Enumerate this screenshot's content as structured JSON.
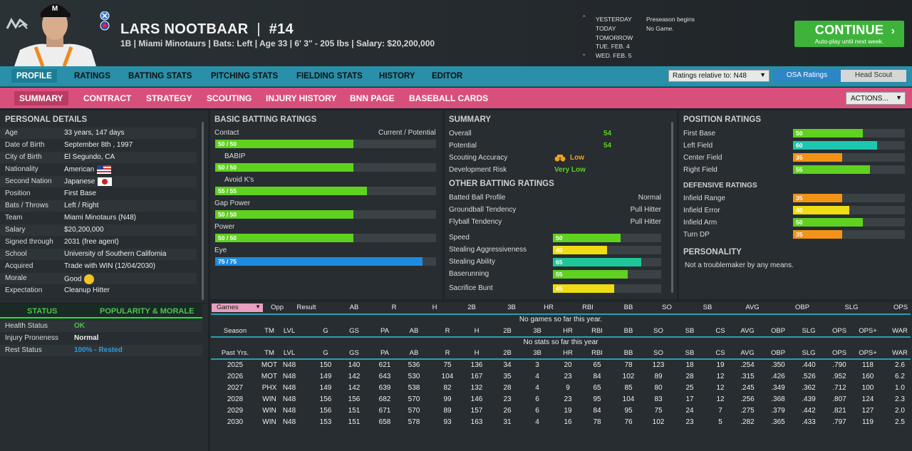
{
  "header": {
    "player_name": "LARS NOOTBAAR",
    "divider": "|",
    "number": "#14",
    "info": "1B | Miami Minotaurs  |  Bats: Left  |  Age 33  |  6' 3\" - 205 lbs  |  Salary: $20,200,000",
    "days": [
      "YESTERDAY",
      "TODAY",
      "TOMORROW",
      "TUE. FEB. 4",
      "WED. FEB. 5"
    ],
    "events": [
      "Preseason begins",
      "No Game."
    ],
    "continue_label": "CONTINUE",
    "continue_sub": "Auto-play until next week."
  },
  "nav1": {
    "items": [
      "PROFILE",
      "RATINGS",
      "BATTING STATS",
      "PITCHING STATS",
      "FIELDING STATS",
      "HISTORY",
      "EDITOR"
    ],
    "ratings_select": "Ratings relative to: N48",
    "toggle_a": "OSA Ratings",
    "toggle_b": "Head Scout"
  },
  "nav2": {
    "items": [
      "SUMMARY",
      "CONTRACT",
      "STRATEGY",
      "SCOUTING",
      "INJURY HISTORY",
      "BNN PAGE",
      "BASEBALL CARDS"
    ],
    "actions": "ACTIONS..."
  },
  "personal": {
    "title": "PERSONAL DETAILS",
    "rows": [
      {
        "k": "Age",
        "v": "33 years, 147 days"
      },
      {
        "k": "Date of Birth",
        "v": "September 8th , 1997"
      },
      {
        "k": "City of Birth",
        "v": "El Segundo, CA"
      },
      {
        "k": "Nationality",
        "v": "American"
      },
      {
        "k": "Second Nation",
        "v": "Japanese"
      },
      {
        "k": "Position",
        "v": "First Base"
      },
      {
        "k": "Bats / Throws",
        "v": "Left / Right"
      },
      {
        "k": "Team",
        "v": "Miami Minotaurs (N48)"
      },
      {
        "k": "Salary",
        "v": "$20,200,000"
      },
      {
        "k": "Signed through",
        "v": "2031 (free agent)"
      },
      {
        "k": "School",
        "v": "University of Southern California"
      },
      {
        "k": "Acquired",
        "v": "Trade with WIN (12/04/2030)"
      },
      {
        "k": "Morale",
        "v": "Good"
      },
      {
        "k": "Expectation",
        "v": "Cleanup Hitter"
      }
    ]
  },
  "status": {
    "tab_a": "STATUS",
    "tab_b": "POPULARITY & MORALE",
    "rows": [
      {
        "k": "Health Status",
        "v": "OK",
        "color": "#4ec44e"
      },
      {
        "k": "Injury Proneness",
        "v": "Normal",
        "color": "#eeeeee"
      },
      {
        "k": "Rest Status",
        "v": "100% - Rested",
        "color": "#2c9be0"
      }
    ]
  },
  "batting": {
    "title": "BASIC BATTING RATINGS",
    "header_right": "Current / Potential",
    "ratings": [
      {
        "label": "Contact",
        "text": "50 / 50",
        "value": 50,
        "color": "#5fd11f"
      },
      {
        "label": "BABIP",
        "text": "50 / 50",
        "value": 50,
        "color": "#5fd11f"
      },
      {
        "label": "Avoid K's",
        "text": "55 / 55",
        "value": 55,
        "color": "#5fd11f"
      },
      {
        "label": "Gap Power",
        "text": "50 / 50",
        "value": 50,
        "color": "#5fd11f"
      },
      {
        "label": "Power",
        "text": "50 / 50",
        "value": 50,
        "color": "#5fd11f"
      },
      {
        "label": "Eye",
        "text": "75 / 75",
        "value": 75,
        "color": "#1e8be0"
      }
    ]
  },
  "summary": {
    "title": "SUMMARY",
    "overall_label": "Overall",
    "overall": "54",
    "potential_label": "Potential",
    "potential": "54",
    "scout_label": "Scouting Accuracy",
    "scout": "Low",
    "dev_label": "Development Risk",
    "dev": "Very Low",
    "other_title": "OTHER BATTING RATINGS",
    "other": [
      {
        "k": "Batted Ball Profile",
        "v": "Normal"
      },
      {
        "k": "Groundball Tendency",
        "v": "Pull Hitter"
      },
      {
        "k": "Flyball Tendency",
        "v": "Pull Hitter"
      }
    ],
    "run_ratings": [
      {
        "label": "Speed",
        "text": "50",
        "value": 50,
        "color": "#5fd11f"
      },
      {
        "label": "Stealing Aggressiveness",
        "text": "40",
        "value": 40,
        "color": "#f0dc14"
      },
      {
        "label": "Stealing Ability",
        "text": "65",
        "value": 65,
        "color": "#1ec79a"
      },
      {
        "label": "Baserunning",
        "text": "55",
        "value": 55,
        "color": "#5fd11f"
      },
      {
        "label": "Sacrifice Bunt",
        "text": "45",
        "value": 45,
        "color": "#f0dc14"
      }
    ]
  },
  "position": {
    "title": "POSITION RATINGS",
    "ratings": [
      {
        "label": "First Base",
        "text": "50",
        "value": 50,
        "color": "#5fd11f"
      },
      {
        "label": "Left Field",
        "text": "60",
        "value": 60,
        "color": "#1ec7b0"
      },
      {
        "label": "Center Field",
        "text": "35",
        "value": 35,
        "color": "#f29318"
      },
      {
        "label": "Right Field",
        "text": "55",
        "value": 55,
        "color": "#5fd11f"
      }
    ],
    "def_title": "DEFENSIVE RATINGS",
    "defensive": [
      {
        "label": "Infield Range",
        "text": "35",
        "value": 35,
        "color": "#f29318"
      },
      {
        "label": "Infield Error",
        "text": "40",
        "value": 40,
        "color": "#f0dc14"
      },
      {
        "label": "Infield Arm",
        "text": "50",
        "value": 50,
        "color": "#5fd11f"
      },
      {
        "label": "Turn DP",
        "text": "35",
        "value": 35,
        "color": "#f29318"
      }
    ],
    "personality_title": "PERSONALITY",
    "personality": "Not a troublemaker by any means."
  },
  "games": {
    "filter": "Games",
    "cols": [
      "Opp",
      "Result",
      "AB",
      "R",
      "H",
      "2B",
      "3B",
      "HR",
      "RBI",
      "BB",
      "SO",
      "SB",
      "AVG",
      "OBP",
      "SLG",
      "OPS"
    ],
    "empty": "No games so far this year."
  },
  "season": {
    "cols": [
      "Season",
      "TM",
      "LVL",
      "G",
      "GS",
      "PA",
      "AB",
      "R",
      "H",
      "2B",
      "3B",
      "HR",
      "RBI",
      "BB",
      "SO",
      "SB",
      "CS",
      "AVG",
      "OBP",
      "SLG",
      "OPS",
      "OPS+",
      "WAR"
    ],
    "empty": "No stats so far this year"
  },
  "past": {
    "cols": [
      "Past Yrs.",
      "TM",
      "LVL",
      "G",
      "GS",
      "PA",
      "AB",
      "R",
      "H",
      "2B",
      "3B",
      "HR",
      "RBI",
      "BB",
      "SO",
      "SB",
      "CS",
      "AVG",
      "OBP",
      "SLG",
      "OPS",
      "OPS+",
      "WAR"
    ],
    "rows": [
      [
        "2025",
        "MOT",
        "N48",
        "150",
        "140",
        "621",
        "536",
        "75",
        "136",
        "34",
        "3",
        "20",
        "65",
        "78",
        "123",
        "18",
        "19",
        ".254",
        ".350",
        ".440",
        ".790",
        "118",
        "2.6"
      ],
      [
        "2026",
        "MOT",
        "N48",
        "149",
        "142",
        "643",
        "530",
        "104",
        "167",
        "35",
        "4",
        "23",
        "84",
        "102",
        "89",
        "28",
        "12",
        ".315",
        ".426",
        ".526",
        ".952",
        "160",
        "6.2"
      ],
      [
        "2027",
        "PHX",
        "N48",
        "149",
        "142",
        "639",
        "538",
        "82",
        "132",
        "28",
        "4",
        "9",
        "65",
        "85",
        "80",
        "25",
        "12",
        ".245",
        ".349",
        ".362",
        ".712",
        "100",
        "1.0"
      ],
      [
        "2028",
        "WIN",
        "N48",
        "156",
        "156",
        "682",
        "570",
        "99",
        "146",
        "23",
        "6",
        "23",
        "95",
        "104",
        "83",
        "17",
        "12",
        ".256",
        ".368",
        ".439",
        ".807",
        "124",
        "2.3"
      ],
      [
        "2029",
        "WIN",
        "N48",
        "156",
        "151",
        "671",
        "570",
        "89",
        "157",
        "26",
        "6",
        "19",
        "84",
        "95",
        "75",
        "24",
        "7",
        ".275",
        ".379",
        ".442",
        ".821",
        "127",
        "2.0"
      ],
      [
        "2030",
        "WIN",
        "N48",
        "153",
        "151",
        "658",
        "578",
        "93",
        "163",
        "31",
        "4",
        "16",
        "78",
        "76",
        "102",
        "23",
        "5",
        ".282",
        ".365",
        ".433",
        ".797",
        "119",
        "2.5"
      ]
    ]
  }
}
